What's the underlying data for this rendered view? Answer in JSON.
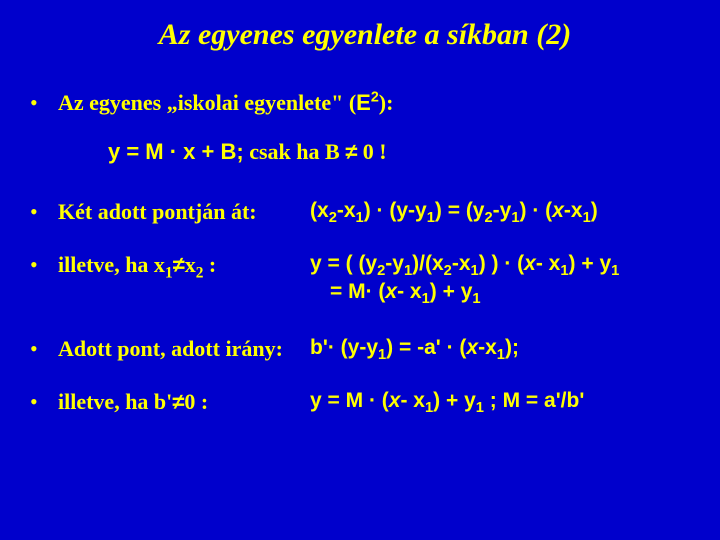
{
  "colors": {
    "background": "#0000cc",
    "text": "#ffff00"
  },
  "title": "Az egyenes egyenlete a síkban (2)",
  "b1": {
    "prefix": "Az egyenes „iskolai egyenlete\" (",
    "e": "E",
    "sup": "2",
    "suffix": "):"
  },
  "eq": {
    "lhs": "y = M · x + B;",
    "rhs": " csak ha B ",
    "neq": "≠",
    "tail": " 0 !"
  },
  "b2": {
    "label": "Két adott pontján át:",
    "form_a": "(x",
    "s1": "2",
    "form_b": "-x",
    "s2": "1",
    "form_c": ") · (y-y",
    "s3": "1",
    "form_d": ") = (y",
    "s4": "2",
    "form_e": "-y",
    "s5": "1",
    "form_f": ") · (",
    "xi": "x",
    "form_g": "-x",
    "s6": "1",
    "form_h": ")"
  },
  "b3": {
    "label_a": "illetve, ha x",
    "ls1": "1",
    "neq": "≠",
    "label_b": "x",
    "ls2": "2",
    "label_c": " :",
    "l1a": "y = ( (y",
    "a1": "2",
    "l1b": "-y",
    "a2": "1",
    "l1c": ")/(x",
    "a3": "2",
    "l1d": "-x",
    "a4": "1",
    "l1e": ") ) · (",
    "xi": "x",
    "l1f": "- x",
    "a5": "1",
    "l1g": ") + y",
    "a6": "1",
    "l2a": "=  M· (",
    "l2b": "- x",
    "b1": "1",
    "l2c": ") + y",
    "b2": "1"
  },
  "b4": {
    "label": "Adott pont, adott irány:",
    "fa": "b'· (y-y",
    "s1": "1",
    "fb": ") = -a' · (",
    "xi": "x",
    "fc": "-x",
    "s2": "1",
    "fd": ");"
  },
  "b5": {
    "label_a": "illetve, ha b'",
    "neq": "≠",
    "label_b": "0 :",
    "fa": "y = M · (",
    "xi": "x",
    "fb": "- x",
    "s1": "1",
    "fc": ") + y",
    "s2": "1",
    "fd": " ; M = a'/b'"
  }
}
